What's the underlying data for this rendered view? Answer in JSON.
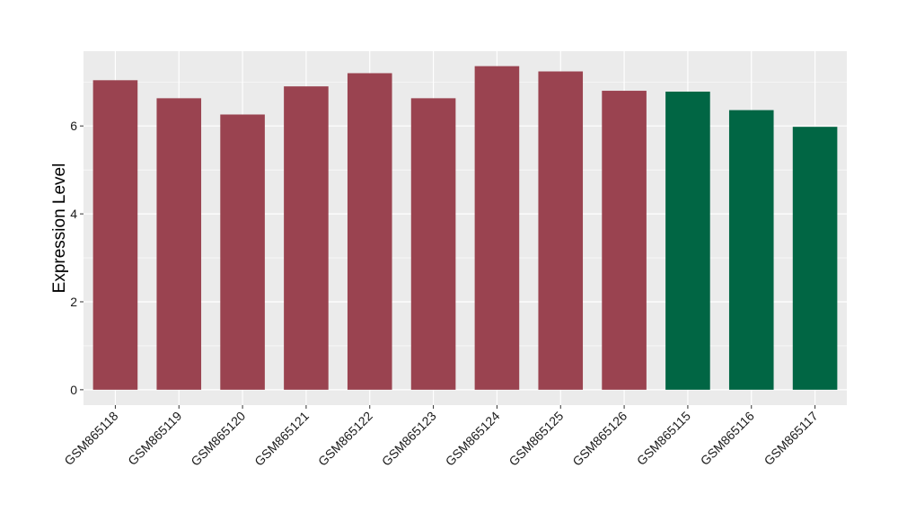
{
  "chart_data": {
    "type": "bar",
    "title": "",
    "xlabel": "",
    "ylabel": "Expression Level",
    "ylim": [
      -0.35,
      7.7
    ],
    "yticks": [
      0,
      2,
      4,
      6
    ],
    "grid": true,
    "legend": "none",
    "categories": [
      "GSM865118",
      "GSM865119",
      "GSM865120",
      "GSM865121",
      "GSM865122",
      "GSM865123",
      "GSM865124",
      "GSM865125",
      "GSM865126",
      "GSM865115",
      "GSM865116",
      "GSM865117"
    ],
    "values": [
      7.04,
      6.63,
      6.26,
      6.9,
      7.2,
      6.63,
      7.36,
      7.24,
      6.8,
      6.78,
      6.36,
      5.98
    ],
    "bar_colors": [
      "#9a4350",
      "#9a4350",
      "#9a4350",
      "#9a4350",
      "#9a4350",
      "#9a4350",
      "#9a4350",
      "#9a4350",
      "#9a4350",
      "#016644",
      "#016644",
      "#016644"
    ],
    "panel_background": "#ebebeb",
    "grid_color": "#ffffff"
  }
}
